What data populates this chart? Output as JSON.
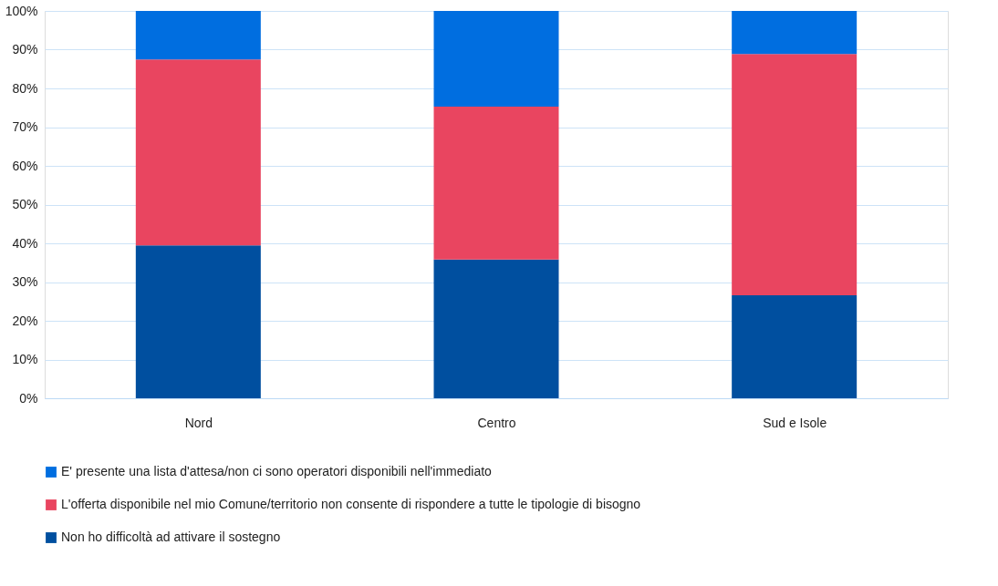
{
  "chart_data": {
    "type": "bar",
    "stacked": true,
    "categories": [
      "Nord",
      "Centro",
      "Sud e Isole"
    ],
    "series": [
      {
        "name": "Non ho difficoltà ad attivare il sostegno",
        "color": "#004f9f",
        "values": [
          39.5,
          35.8,
          26.6
        ]
      },
      {
        "name": "L'offerta disponibile nel mio Comune/territorio non consente di rispondere a tutte le tipologie di bisogno",
        "color": "#e94560",
        "values": [
          48,
          39.5,
          62.3
        ]
      },
      {
        "name": "E' presente una lista d'attesa/non ci sono operatori disponibili nell'immediato",
        "color": "#006ee0",
        "values": [
          12.5,
          24.7,
          11.1
        ]
      }
    ],
    "ylim": [
      0,
      100
    ],
    "yticks": [
      {
        "value": 0,
        "label": "0%"
      },
      {
        "value": 10,
        "label": "10%"
      },
      {
        "value": 20,
        "label": "20%"
      },
      {
        "value": 30,
        "label": "30%"
      },
      {
        "value": 40,
        "label": "40%"
      },
      {
        "value": 50,
        "label": "50%"
      },
      {
        "value": 60,
        "label": "60%"
      },
      {
        "value": 70,
        "label": "70%"
      },
      {
        "value": 80,
        "label": "80%"
      },
      {
        "value": 90,
        "label": "90%"
      },
      {
        "value": 100,
        "label": "100%"
      }
    ],
    "grid": "y",
    "legend": "bottom"
  }
}
